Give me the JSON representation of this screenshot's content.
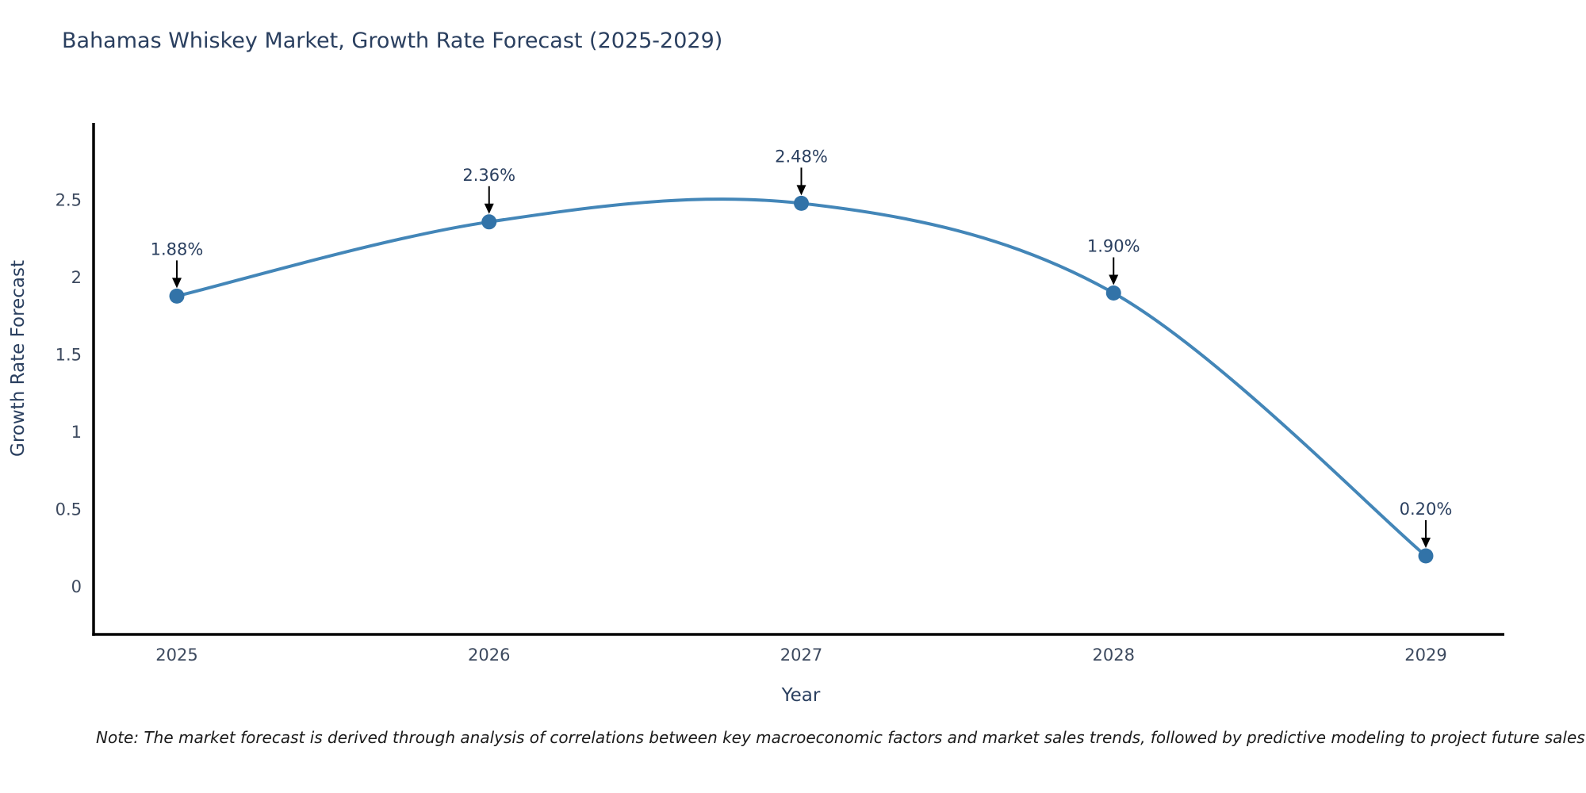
{
  "chart_data": {
    "type": "line",
    "line_shape": "spline",
    "title": "Bahamas Whiskey Market, Growth Rate Forecast (2025-2029)",
    "xlabel": "Year",
    "ylabel": "Growth Rate Forecast",
    "categories": [
      "2025",
      "2026",
      "2027",
      "2028",
      "2029"
    ],
    "values": [
      1.88,
      2.36,
      2.48,
      1.9,
      0.2
    ],
    "point_labels": [
      "1.88%",
      "2.36%",
      "2.48%",
      "1.90%",
      "0.20%"
    ],
    "yticks": [
      "0",
      "0.5",
      "1",
      "1.5",
      "2",
      "2.5"
    ],
    "ytick_values": [
      0,
      0.5,
      1,
      1.5,
      2,
      2.5
    ],
    "ylim": [
      -0.3,
      3.0
    ],
    "grid": false,
    "legend_position": "none",
    "colors": {
      "line": "#4386b8",
      "marker": "#3273a8",
      "arrow": "#000000",
      "axis": "#000000",
      "title_text": "#2a3f5f",
      "tick_text": "#3d4a5f"
    }
  },
  "note": "Note: The market forecast is derived through analysis of correlations between key macroeconomic factors and market sales trends, followed by predictive modeling to project future sales"
}
